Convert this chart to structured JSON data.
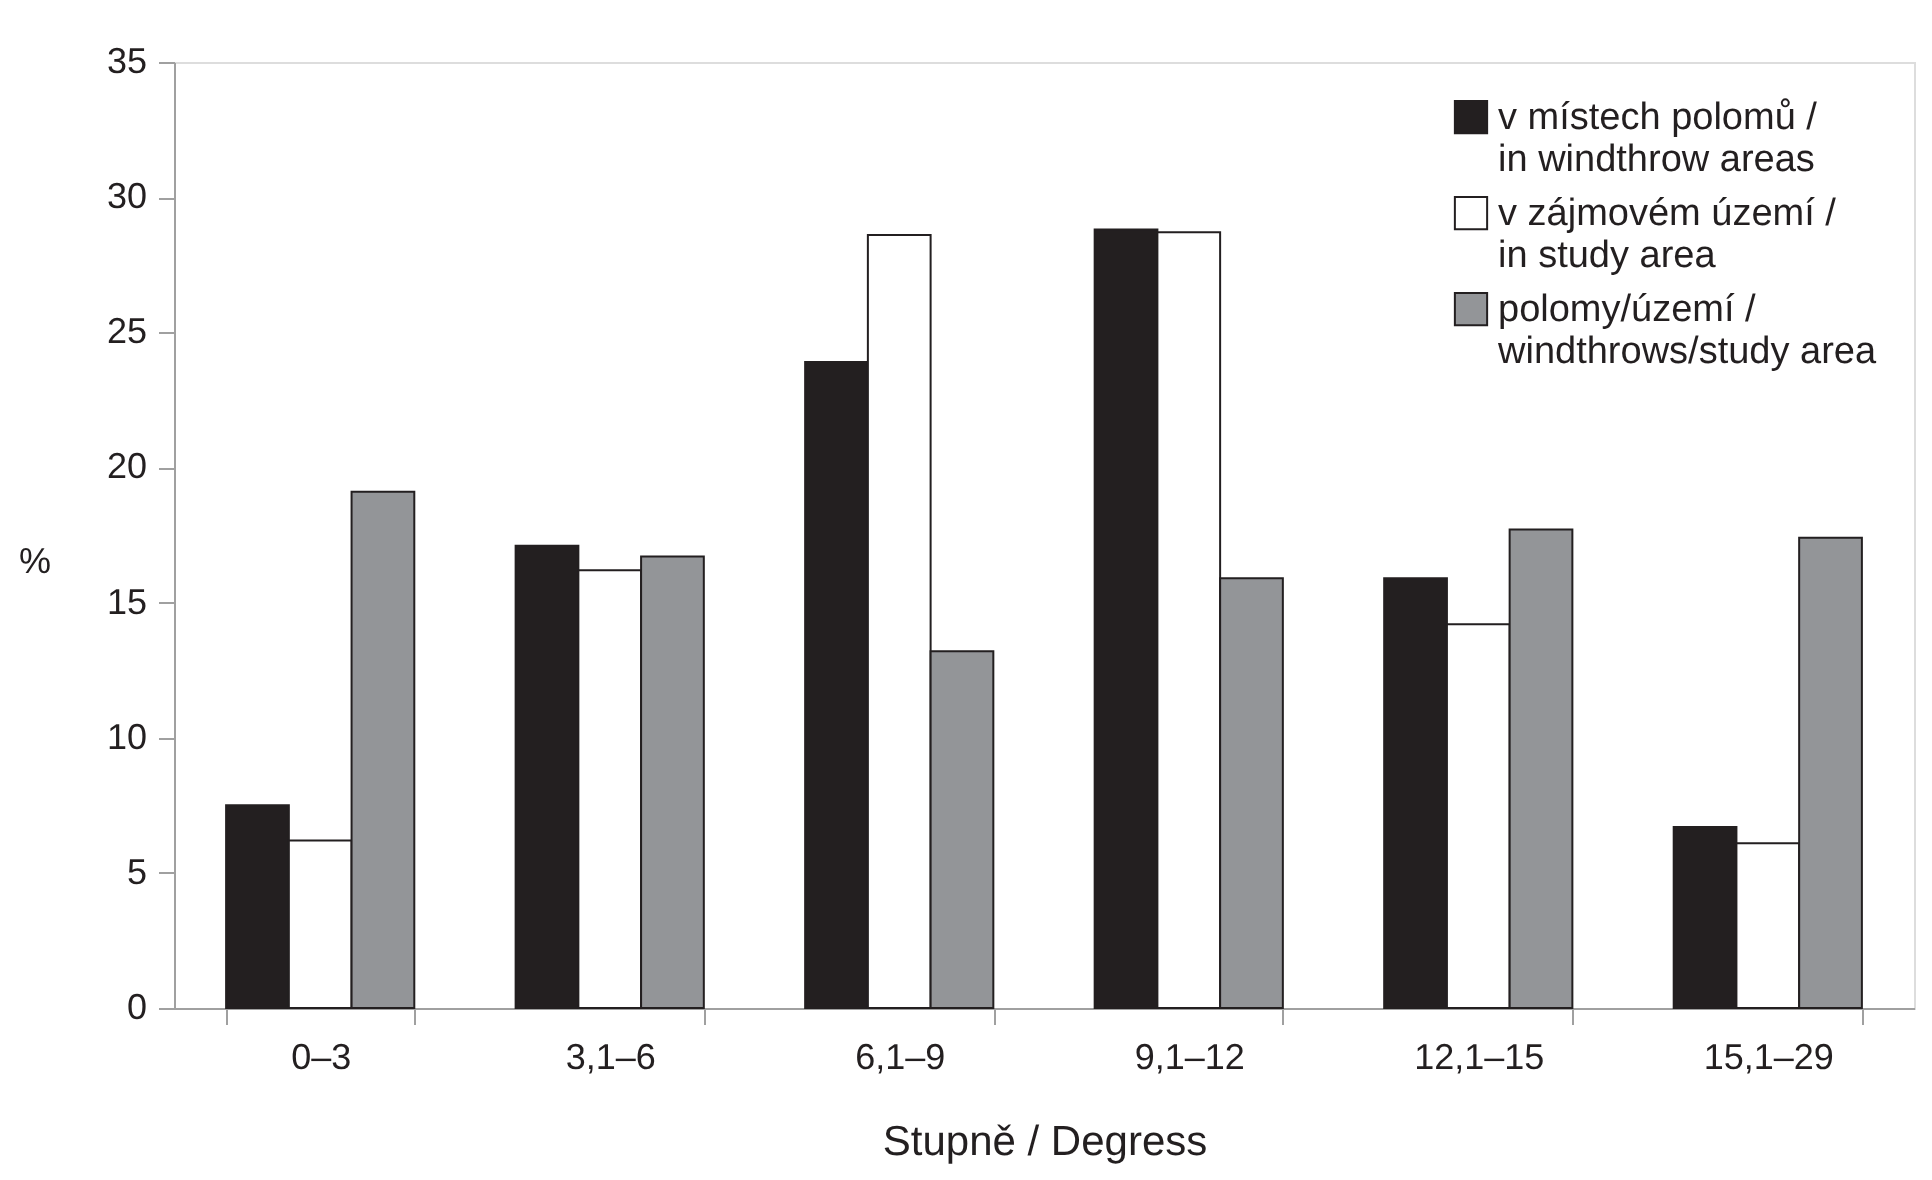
{
  "chart_data": {
    "type": "bar",
    "xlabel": "Stupně / Degress",
    "ylabel": "%",
    "categories": [
      "0–3",
      "3,1–6",
      "6,1–9",
      "9,1–12",
      "12,1–15",
      "15,1–29"
    ],
    "series": [
      {
        "name": "v místech polomů / in windthrow areas",
        "color": "#231f20",
        "values": [
          7.5,
          17.1,
          23.9,
          28.8,
          15.9,
          6.7
        ]
      },
      {
        "name": "v zájmovém území / in study area",
        "color": "#ffffff",
        "values": [
          6.2,
          16.2,
          28.6,
          28.7,
          14.2,
          6.1
        ]
      },
      {
        "name": "polomy/území / windthrows/study area",
        "color": "#939598",
        "values": [
          19.1,
          16.7,
          13.2,
          15.9,
          17.7,
          17.4
        ]
      }
    ],
    "ylim": [
      0,
      35
    ],
    "yticks": [
      0,
      5,
      10,
      15,
      20,
      25,
      30,
      35
    ],
    "grid": false,
    "legend": "top right"
  }
}
